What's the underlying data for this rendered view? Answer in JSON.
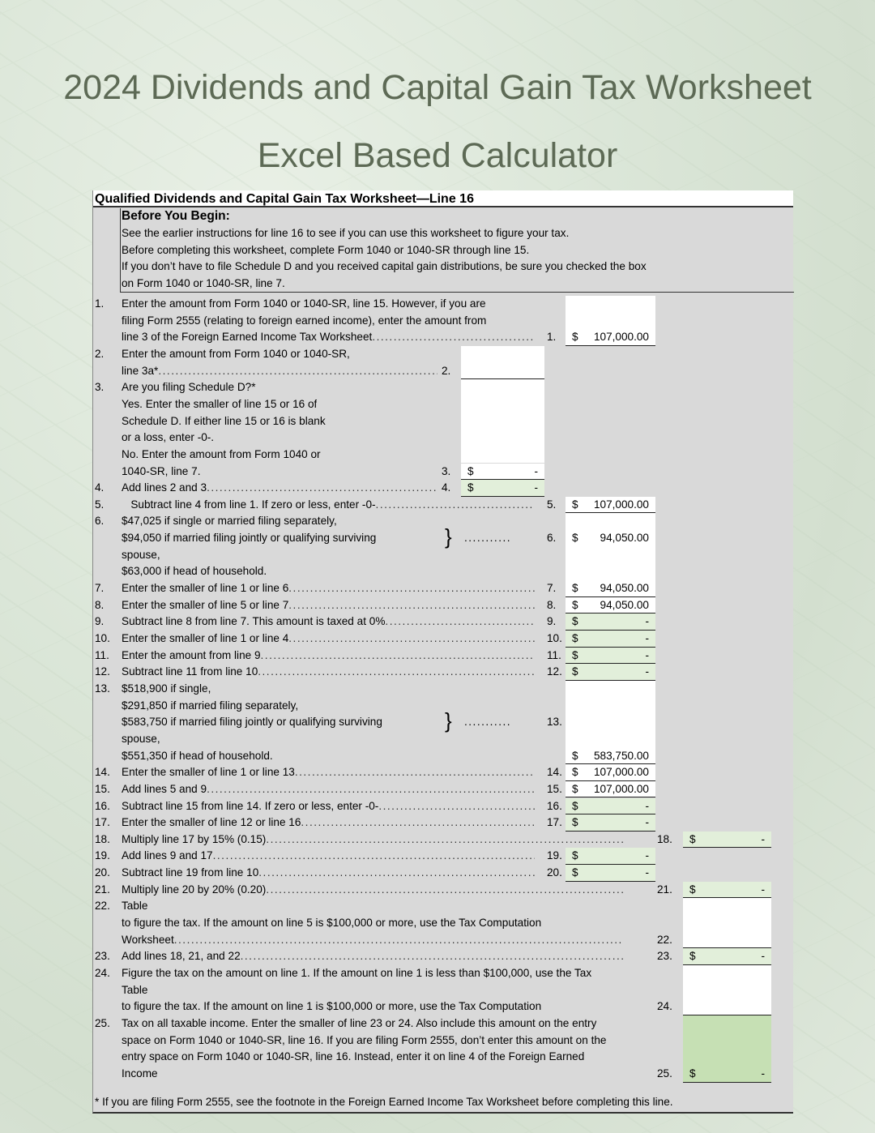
{
  "title_line1": "2024 Dividends and Capital Gain Tax Worksheet",
  "title_line2": "Excel Based Calculator",
  "worksheet": {
    "header": "Qualified Dividends and Capital Gain Tax Worksheet—Line 16",
    "before_heading": "Before You Begin:",
    "intro": [
      "See the earlier instructions for line 16 to see if you can use this worksheet to figure your tax.",
      "Before completing this worksheet, complete Form 1040 or 1040-SR through line 15.",
      "If you don’t have to file Schedule D and you received capital gain distributions, be sure you checked the box",
      "on Form 1040 or 1040-SR, line 7."
    ],
    "footnote": "* If you are filing Form 2555, see the footnote in the Foreign Earned Income Tax Worksheet before completing this line.",
    "colors": {
      "input_white": "#ffffff",
      "calc_green": "#e2efda",
      "result_green": "#c6e0b4",
      "sheet_gray": "#d9d9d9"
    },
    "rows": [
      {
        "num": "1.",
        "text": "Enter the amount from Form 1040 or 1040-SR, line 15. However, if you are",
        "col": "right",
        "fill": "white"
      },
      {
        "text": "filing Form 2555 (relating to foreign earned income), enter the amount from",
        "col": "right",
        "fill": "white"
      },
      {
        "text": "line 3 of the Foreign Earned Income Tax Worksheet",
        "leader": true,
        "col": "right",
        "fill": "white",
        "ul": true,
        "label": "1.",
        "cur": "$",
        "amt": "107,000.00"
      },
      {
        "num": "2.",
        "text": "Enter the amount from Form 1040 or 1040-SR,",
        "col": "mid",
        "fill": "white"
      },
      {
        "text": "line 3a*",
        "leader": true,
        "col": "mid",
        "fill": "white",
        "ul": true,
        "label": "2."
      },
      {
        "num": "3.",
        "text": "Are you filing Schedule D?*",
        "col": "mid",
        "fill": "white"
      },
      {
        "text": "Yes. Enter the smaller of line 15 or 16 of",
        "col": "mid",
        "fill": "white"
      },
      {
        "text": "Schedule D. If either line 15 or 16 is blank",
        "col": "mid",
        "fill": "white"
      },
      {
        "text": "or a loss, enter -0-.",
        "col": "mid",
        "fill": "white"
      },
      {
        "text": "No. Enter the amount from Form 1040 or",
        "col": "mid",
        "fill": "white"
      },
      {
        "text": "1040-SR, line 7.",
        "col": "mid",
        "fill": "white",
        "ul": true,
        "label": "3.",
        "cur": "$",
        "amt": "-"
      },
      {
        "num": "4.",
        "text": "Add lines 2 and 3",
        "leader": true,
        "col": "mid",
        "fill": "green",
        "ul": true,
        "label": "4.",
        "cur": "$",
        "amt": "-"
      },
      {
        "num": "5.",
        "text": "   Subtract line 4 from line 1. If zero or less, enter -0-",
        "leader": true,
        "col": "right",
        "fill": "white",
        "ul": true,
        "label": "5.",
        "cur": "$",
        "amt": "107,000.00"
      },
      {
        "num": "6.",
        "text": "$47,025 if single or married filing separately,",
        "col": "right",
        "fill": "white"
      },
      {
        "text": "$94,050 if married filing jointly or qualifying surviving",
        "col": "right",
        "fill": "white",
        "brace": "}",
        "bdots": "...........",
        "label": "6.",
        "cur": "$",
        "amt": "94,050.00"
      },
      {
        "text": "spouse,",
        "col": "right",
        "fill": "white"
      },
      {
        "text": "$63,000 if head of household.",
        "col": "right",
        "fill": "white"
      },
      {
        "num": "7.",
        "text": "Enter the smaller of line 1 or line 6",
        "leader": true,
        "col": "right",
        "fill": "white",
        "ul": true,
        "label": "7.",
        "cur": "$",
        "amt": "94,050.00"
      },
      {
        "num": "8.",
        "text": "Enter the smaller of line 5 or line 7",
        "leader": true,
        "col": "right",
        "fill": "white",
        "ul": true,
        "label": "8.",
        "cur": "$",
        "amt": "94,050.00"
      },
      {
        "num": "9.",
        "text": "Subtract line 8 from line 7. This amount is taxed at 0%",
        "leader": true,
        "col": "right",
        "fill": "green",
        "ul": true,
        "label": "9.",
        "cur": "$",
        "amt": "-"
      },
      {
        "num": "10.",
        "text": "Enter the smaller of line 1 or line 4",
        "leader": true,
        "col": "right",
        "fill": "green",
        "ul": true,
        "label": "10.",
        "cur": "$",
        "amt": "-"
      },
      {
        "num": "11.",
        "text": "Enter the amount from line 9",
        "leader": true,
        "col": "right",
        "fill": "green",
        "ul": true,
        "label": "11.",
        "cur": "$",
        "amt": "-"
      },
      {
        "num": "12.",
        "text": "Subtract line 11 from line 10",
        "leader": true,
        "col": "right",
        "fill": "green",
        "ul": true,
        "label": "12.",
        "cur": "$",
        "amt": "-"
      },
      {
        "num": "13.",
        "text": "$518,900 if single,",
        "col": "right",
        "fill": "white"
      },
      {
        "text": "$291,850 if married filing separately,",
        "col": "right",
        "fill": "white"
      },
      {
        "text": "$583,750 if married filing jointly or qualifying surviving",
        "col": "right",
        "fill": "white",
        "brace": "}",
        "bdots": "...........",
        "label": "13."
      },
      {
        "text": "spouse,",
        "col": "right",
        "fill": "white"
      },
      {
        "text": "$551,350 if head of household.",
        "col": "right",
        "fill": "white",
        "ul": true,
        "cur": "$",
        "amt": "583,750.00"
      },
      {
        "num": "14.",
        "text": "Enter the smaller of line 1 or line 13",
        "leader": true,
        "col": "right",
        "fill": "white",
        "ul": true,
        "label": "14.",
        "cur": "$",
        "amt": "107,000.00"
      },
      {
        "num": "15.",
        "text": "Add lines 5 and 9",
        "leader": true,
        "col": "right",
        "fill": "white",
        "ul": true,
        "label": "15.",
        "cur": "$",
        "amt": "107,000.00"
      },
      {
        "num": "16.",
        "text": "Subtract line 15 from line 14. If zero or less, enter -0-",
        "leader": true,
        "col": "right",
        "fill": "green",
        "ul": true,
        "label": "16.",
        "cur": "$",
        "amt": "-"
      },
      {
        "num": "17.",
        "text": "Enter the smaller of line 12 or line 16",
        "leader": true,
        "col": "right",
        "fill": "green",
        "ul": true,
        "label": "17.",
        "cur": "$",
        "amt": "-"
      },
      {
        "num": "18.",
        "text": "Multiply line 17 by 15% (0.15)",
        "leader": true,
        "col": "far",
        "fill": "green",
        "ul": true,
        "label": "18.",
        "cur": "$",
        "amt": "-"
      },
      {
        "num": "19.",
        "text": "Add lines 9 and 17",
        "leader": true,
        "col": "right",
        "fill": "green",
        "ul": true,
        "label": "19.",
        "cur": "$",
        "amt": "-"
      },
      {
        "num": "20.",
        "text": "Subtract line 19 from line 10",
        "leader": true,
        "col": "right",
        "fill": "green",
        "ul": true,
        "label": "20.",
        "cur": "$",
        "amt": "-"
      },
      {
        "num": "21.",
        "text": "Multiply line 20 by 20% (0.20)",
        "leader": true,
        "col": "far",
        "fill": "green",
        "ul": true,
        "label": "21.",
        "cur": "$",
        "amt": "-"
      },
      {
        "num": "22.",
        "text": "Table",
        "col": "far",
        "fill": "white"
      },
      {
        "text": "to figure the tax. If the amount on line 5 is $100,000 or more, use the Tax Computation",
        "col": "far",
        "fill": "white"
      },
      {
        "text": "Worksheet",
        "leader": true,
        "col": "far",
        "fill": "white",
        "ul": true,
        "label": "22."
      },
      {
        "num": "23.",
        "text": "Add lines 18, 21, and 22",
        "leader": true,
        "col": "far",
        "fill": "green",
        "ul": true,
        "label": "23.",
        "cur": "$",
        "amt": "-"
      },
      {
        "num": "24.",
        "text": "Figure the tax on the amount on line 1. If the amount on line 1 is less than $100,000, use the Tax",
        "col": "far",
        "fill": "white"
      },
      {
        "text": "Table",
        "col": "far",
        "fill": "white"
      },
      {
        "text": "to figure the tax. If the amount on line 1 is $100,000 or more, use the Tax Computation",
        "col": "far",
        "fill": "white",
        "ul": true,
        "label": "24."
      },
      {
        "num": "25.",
        "text": "Tax on all taxable income. Enter the smaller of line 23 or 24. Also include this amount on the entry",
        "col": "far",
        "fill": "dgreen"
      },
      {
        "text": "space on Form 1040 or 1040-SR, line 16. If you are filing Form 2555, don’t enter this amount on the",
        "col": "far",
        "fill": "dgreen"
      },
      {
        "text": "entry space on Form 1040 or 1040-SR, line 16. Instead, enter it on line 4 of the Foreign Earned",
        "col": "far",
        "fill": "dgreen"
      },
      {
        "text": "Income",
        "col": "far",
        "fill": "dgreen",
        "ul": true,
        "label": "25.",
        "cur": "$",
        "amt": "-"
      }
    ]
  }
}
